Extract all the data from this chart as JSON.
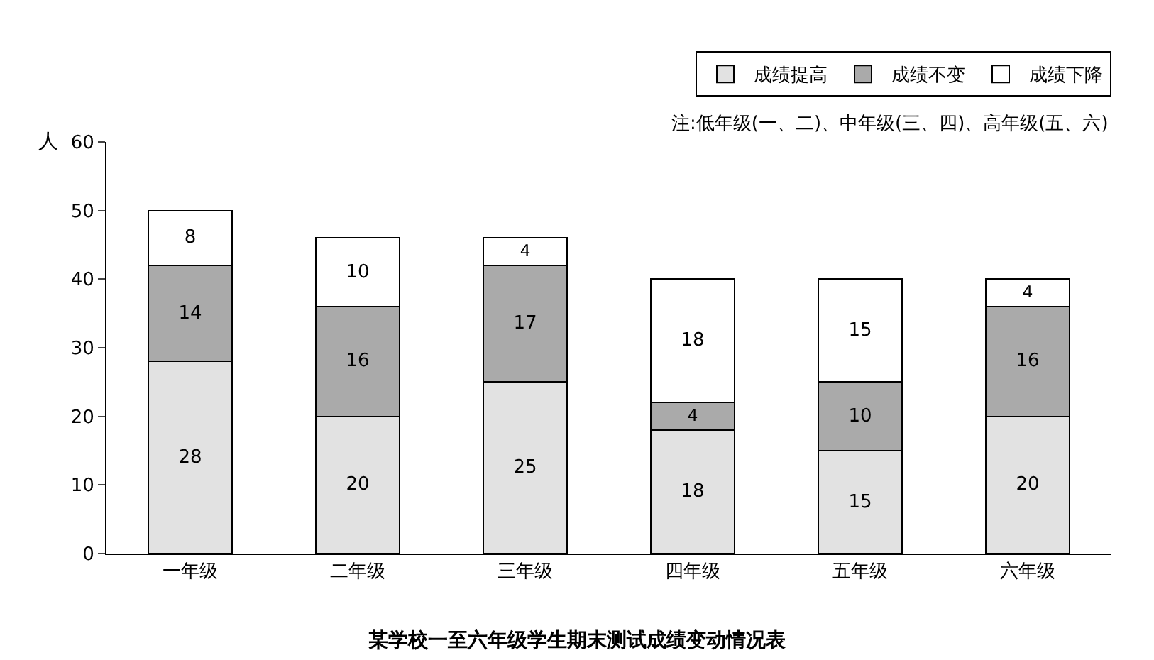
{
  "chart_data": {
    "type": "bar",
    "title": "某学校一至六年级学生期末测试成绩变动情况表",
    "ylabel": "人",
    "annotations": [
      "注:低年级(一、二)、中年级(三、四)、高年级(五、六)"
    ],
    "categories": [
      "一年级",
      "二年级",
      "三年级",
      "四年级",
      "五年级",
      "六年级"
    ],
    "series": [
      {
        "name": "成绩提高",
        "color": "#e2e2e2",
        "values": [
          28,
          20,
          25,
          18,
          15,
          20
        ]
      },
      {
        "name": "成绩不变",
        "color": "#aaaaaa",
        "values": [
          14,
          16,
          17,
          4,
          10,
          16
        ]
      },
      {
        "name": "成绩下降",
        "color": "#ffffff",
        "values": [
          8,
          10,
          4,
          18,
          15,
          4
        ]
      }
    ],
    "stacked": true,
    "data_labels": true,
    "ylim": [
      0,
      60
    ],
    "yticks": [
      0,
      10,
      20,
      30,
      40,
      50,
      60
    ],
    "grid": false,
    "legend": "top right"
  }
}
